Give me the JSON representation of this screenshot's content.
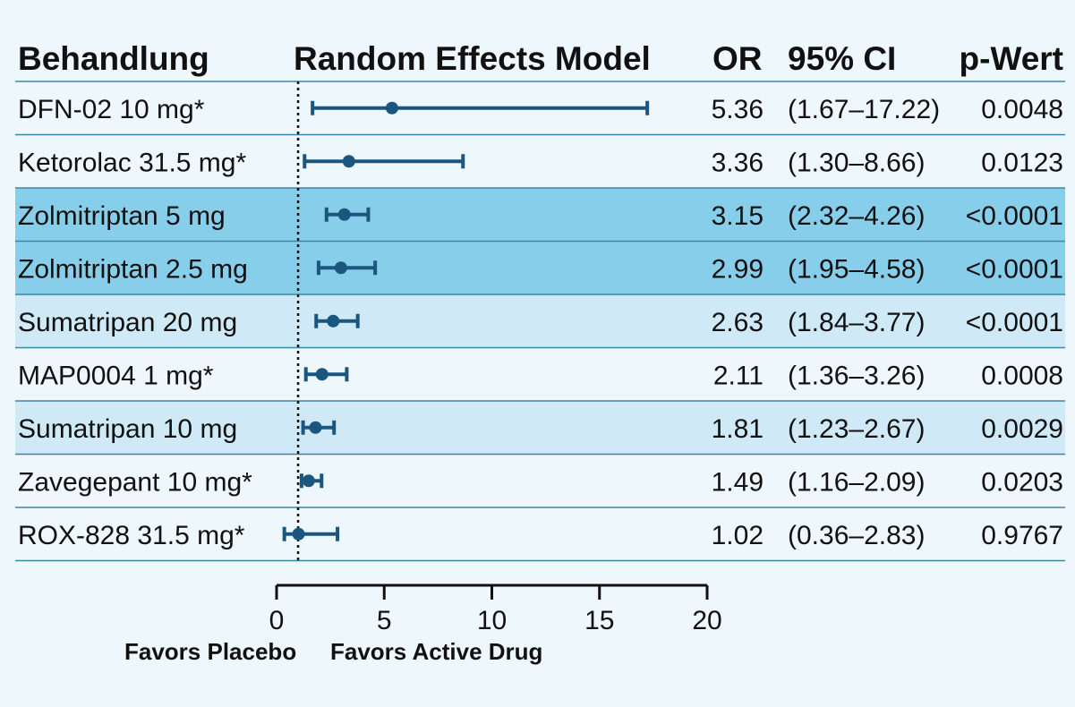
{
  "chart_data": {
    "type": "forest",
    "headers": {
      "treatment": "Behandlung",
      "model": "Random Effects Model",
      "or": "OR",
      "ci": "95% CI",
      "p": "p-Wert"
    },
    "rows": [
      {
        "label": "DFN-02 10 mg*",
        "or": 5.36,
        "lo": 1.67,
        "hi": 17.22,
        "or_text": "5.36",
        "ci_text": "(1.67–17.22)",
        "p_text": "0.0048",
        "highlight": "none"
      },
      {
        "label": "Ketorolac 31.5 mg*",
        "or": 3.36,
        "lo": 1.3,
        "hi": 8.66,
        "or_text": "3.36",
        "ci_text": "(1.30–8.66)",
        "p_text": "0.0123",
        "highlight": "none"
      },
      {
        "label": "Zolmitriptan 5 mg",
        "or": 3.15,
        "lo": 2.32,
        "hi": 4.26,
        "or_text": "3.15",
        "ci_text": "(2.32–4.26)",
        "p_text": "<0.0001",
        "highlight": "strong"
      },
      {
        "label": "Zolmitriptan 2.5 mg",
        "or": 2.99,
        "lo": 1.95,
        "hi": 4.58,
        "or_text": "2.99",
        "ci_text": "(1.95–4.58)",
        "p_text": "<0.0001",
        "highlight": "strong"
      },
      {
        "label": "Sumatripan 20 mg",
        "or": 2.63,
        "lo": 1.84,
        "hi": 3.77,
        "or_text": "2.63",
        "ci_text": "(1.84–3.77)",
        "p_text": "<0.0001",
        "highlight": "light"
      },
      {
        "label": "MAP0004 1 mg*",
        "or": 2.11,
        "lo": 1.36,
        "hi": 3.26,
        "or_text": "2.11",
        "ci_text": "(1.36–3.26)",
        "p_text": "0.0008",
        "highlight": "none"
      },
      {
        "label": "Sumatripan 10 mg",
        "or": 1.81,
        "lo": 1.23,
        "hi": 2.67,
        "or_text": "1.81",
        "ci_text": "(1.23–2.67)",
        "p_text": "0.0029",
        "highlight": "light"
      },
      {
        "label": "Zavegepant 10 mg*",
        "or": 1.49,
        "lo": 1.16,
        "hi": 2.09,
        "or_text": "1.49",
        "ci_text": "(1.16–2.09)",
        "p_text": "0.0203",
        "highlight": "none"
      },
      {
        "label": "ROX-828 31.5 mg*",
        "or": 1.02,
        "lo": 0.36,
        "hi": 2.83,
        "or_text": "1.02",
        "ci_text": "(0.36–2.83)",
        "p_text": "0.9767",
        "highlight": "none"
      }
    ],
    "x_axis": {
      "range": [
        0,
        20
      ],
      "ticks": [
        0,
        5,
        10,
        15,
        20
      ],
      "reference_line": 1
    },
    "direction_labels": {
      "left": "Favors Placebo",
      "right": "Favors Active Drug"
    },
    "colors": {
      "background": "#eef7fc",
      "row_strong": "#87ceea",
      "row_light": "#cfeaf6",
      "marker": "#1b567e",
      "divider": "#3f86a6",
      "text": "#111111"
    },
    "grid": false,
    "legend": "none"
  }
}
